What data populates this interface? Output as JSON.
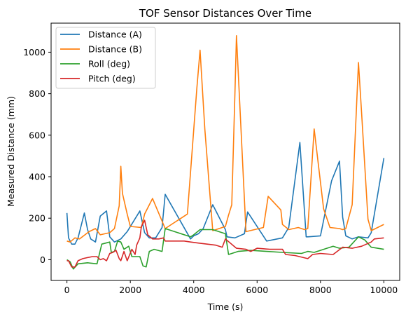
{
  "chart_data": {
    "type": "line",
    "title": "TOF Sensor Distances Over Time",
    "xlabel": "Time (s)",
    "ylabel": "Measured Distance (mm)",
    "xlim": [
      -500,
      10500
    ],
    "ylim": [
      -100,
      1140
    ],
    "xticks": [
      0,
      2000,
      4000,
      6000,
      8000,
      10000
    ],
    "yticks": [
      0,
      200,
      400,
      600,
      800,
      1000
    ],
    "grid": false,
    "legend_position": "top-left",
    "series": [
      {
        "name": "Distance (A)",
        "color": "#1f77b4",
        "points": [
          [
            0,
            225
          ],
          [
            50,
            105
          ],
          [
            150,
            75
          ],
          [
            250,
            75
          ],
          [
            350,
            105
          ],
          [
            550,
            225
          ],
          [
            650,
            145
          ],
          [
            750,
            100
          ],
          [
            900,
            85
          ],
          [
            1050,
            210
          ],
          [
            1250,
            235
          ],
          [
            1350,
            110
          ],
          [
            1500,
            85
          ],
          [
            1700,
            100
          ],
          [
            1900,
            135
          ],
          [
            2300,
            235
          ],
          [
            2450,
            130
          ],
          [
            2600,
            105
          ],
          [
            2800,
            105
          ],
          [
            3000,
            155
          ],
          [
            3100,
            315
          ],
          [
            3900,
            100
          ],
          [
            4000,
            115
          ],
          [
            4150,
            125
          ],
          [
            4300,
            150
          ],
          [
            4600,
            265
          ],
          [
            5000,
            145
          ],
          [
            5050,
            110
          ],
          [
            5300,
            105
          ],
          [
            5600,
            125
          ],
          [
            5700,
            230
          ],
          [
            6300,
            90
          ],
          [
            6800,
            105
          ],
          [
            7000,
            155
          ],
          [
            7350,
            565
          ],
          [
            7550,
            110
          ],
          [
            7600,
            110
          ],
          [
            8000,
            115
          ],
          [
            8350,
            380
          ],
          [
            8600,
            475
          ],
          [
            8700,
            205
          ],
          [
            8800,
            115
          ],
          [
            9000,
            100
          ],
          [
            9200,
            110
          ],
          [
            9500,
            105
          ],
          [
            9600,
            130
          ],
          [
            10000,
            490
          ]
        ]
      },
      {
        "name": "Distance (B)",
        "color": "#ff7f0e",
        "points": [
          [
            0,
            90
          ],
          [
            100,
            85
          ],
          [
            250,
            105
          ],
          [
            400,
            100
          ],
          [
            700,
            135
          ],
          [
            900,
            150
          ],
          [
            1050,
            120
          ],
          [
            1350,
            130
          ],
          [
            1500,
            150
          ],
          [
            1650,
            260
          ],
          [
            1700,
            450
          ],
          [
            1750,
            320
          ],
          [
            1900,
            220
          ],
          [
            2000,
            160
          ],
          [
            2350,
            155
          ],
          [
            2450,
            220
          ],
          [
            2700,
            295
          ],
          [
            3100,
            150
          ],
          [
            3700,
            210
          ],
          [
            3800,
            220
          ],
          [
            4100,
            830
          ],
          [
            4200,
            1010
          ],
          [
            4350,
            630
          ],
          [
            4600,
            140
          ],
          [
            5000,
            160
          ],
          [
            5100,
            215
          ],
          [
            5200,
            265
          ],
          [
            5300,
            800
          ],
          [
            5350,
            1080
          ],
          [
            5450,
            760
          ],
          [
            5650,
            135
          ],
          [
            6200,
            155
          ],
          [
            6350,
            305
          ],
          [
            6750,
            240
          ],
          [
            6800,
            170
          ],
          [
            7000,
            145
          ],
          [
            7300,
            155
          ],
          [
            7500,
            145
          ],
          [
            7600,
            150
          ],
          [
            7800,
            630
          ],
          [
            8100,
            245
          ],
          [
            8300,
            155
          ],
          [
            8600,
            150
          ],
          [
            8700,
            145
          ],
          [
            8800,
            150
          ],
          [
            9000,
            265
          ],
          [
            9200,
            950
          ],
          [
            9300,
            700
          ],
          [
            9500,
            195
          ],
          [
            9600,
            140
          ],
          [
            10000,
            170
          ]
        ]
      },
      {
        "name": "Roll (deg)",
        "color": "#2ca02c",
        "points": [
          [
            0,
            0
          ],
          [
            100,
            -10
          ],
          [
            200,
            -45
          ],
          [
            350,
            -20
          ],
          [
            650,
            -15
          ],
          [
            950,
            -20
          ],
          [
            1100,
            75
          ],
          [
            1350,
            85
          ],
          [
            1400,
            35
          ],
          [
            1500,
            40
          ],
          [
            1600,
            90
          ],
          [
            1700,
            85
          ],
          [
            1800,
            50
          ],
          [
            1950,
            65
          ],
          [
            2050,
            15
          ],
          [
            2300,
            15
          ],
          [
            2400,
            -30
          ],
          [
            2500,
            -35
          ],
          [
            2600,
            40
          ],
          [
            2750,
            50
          ],
          [
            3000,
            40
          ],
          [
            3100,
            150
          ],
          [
            3900,
            110
          ],
          [
            4000,
            120
          ],
          [
            4200,
            145
          ],
          [
            4600,
            145
          ],
          [
            5000,
            125
          ],
          [
            5100,
            25
          ],
          [
            5400,
            40
          ],
          [
            5800,
            45
          ],
          [
            6300,
            40
          ],
          [
            6800,
            35
          ],
          [
            7400,
            30
          ],
          [
            7600,
            40
          ],
          [
            7800,
            35
          ],
          [
            8400,
            65
          ],
          [
            8600,
            55
          ],
          [
            8900,
            60
          ],
          [
            9200,
            110
          ],
          [
            9400,
            95
          ],
          [
            9600,
            60
          ],
          [
            10000,
            50
          ]
        ]
      },
      {
        "name": "Pitch (deg)",
        "color": "#d62728",
        "points": [
          [
            0,
            -5
          ],
          [
            50,
            -5
          ],
          [
            150,
            -35
          ],
          [
            250,
            -35
          ],
          [
            350,
            -5
          ],
          [
            500,
            5
          ],
          [
            650,
            10
          ],
          [
            800,
            15
          ],
          [
            950,
            15
          ],
          [
            1050,
            0
          ],
          [
            1150,
            5
          ],
          [
            1250,
            -5
          ],
          [
            1350,
            30
          ],
          [
            1450,
            35
          ],
          [
            1550,
            45
          ],
          [
            1650,
            5
          ],
          [
            1700,
            -5
          ],
          [
            1800,
            40
          ],
          [
            1900,
            -5
          ],
          [
            2050,
            50
          ],
          [
            2150,
            25
          ],
          [
            2200,
            70
          ],
          [
            2300,
            105
          ],
          [
            2350,
            160
          ],
          [
            2450,
            190
          ],
          [
            2550,
            120
          ],
          [
            2700,
            100
          ],
          [
            2900,
            100
          ],
          [
            3050,
            105
          ],
          [
            3100,
            90
          ],
          [
            3700,
            90
          ],
          [
            3900,
            85
          ],
          [
            4150,
            80
          ],
          [
            4700,
            70
          ],
          [
            4900,
            60
          ],
          [
            5000,
            100
          ],
          [
            5350,
            55
          ],
          [
            5650,
            50
          ],
          [
            5800,
            40
          ],
          [
            6000,
            55
          ],
          [
            6400,
            50
          ],
          [
            6800,
            50
          ],
          [
            6900,
            25
          ],
          [
            7200,
            20
          ],
          [
            7600,
            5
          ],
          [
            7750,
            25
          ],
          [
            8000,
            30
          ],
          [
            8400,
            25
          ],
          [
            8700,
            60
          ],
          [
            9000,
            55
          ],
          [
            9300,
            65
          ],
          [
            9600,
            85
          ],
          [
            9700,
            100
          ],
          [
            10000,
            105
          ]
        ]
      }
    ]
  }
}
